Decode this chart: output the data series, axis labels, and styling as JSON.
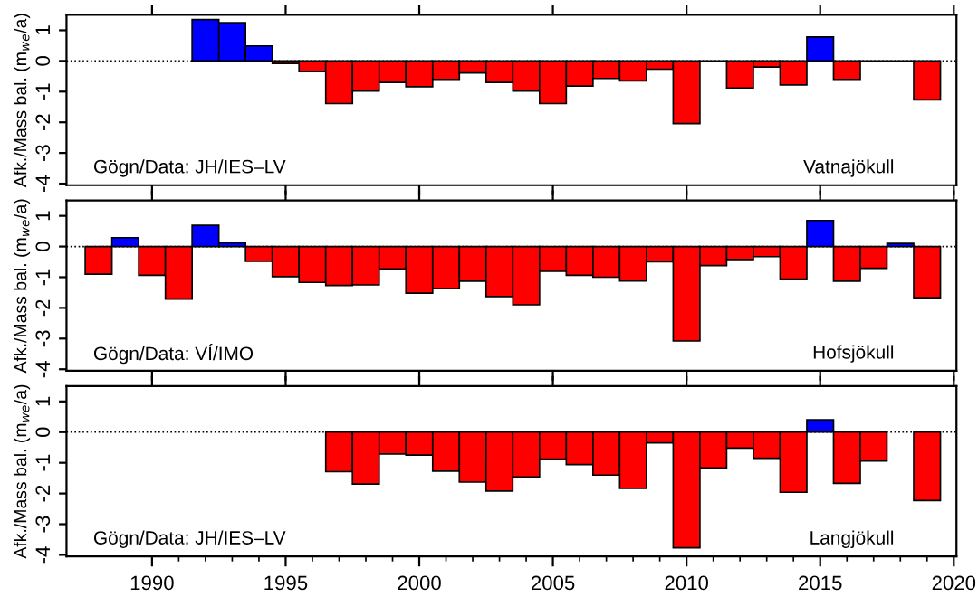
{
  "chart_data": [
    {
      "type": "bar",
      "ylabel": "Afk./Mass bal. (m$_{we}$/a)",
      "annotations": [
        "Gögn/Data: JH/IES–LV",
        "Vatnajökull"
      ],
      "x": [
        1992,
        1993,
        1994,
        1995,
        1996,
        1997,
        1998,
        1999,
        2000,
        2001,
        2002,
        2003,
        2004,
        2005,
        2006,
        2007,
        2008,
        2009,
        2010,
        2011,
        2012,
        2013,
        2014,
        2015,
        2016,
        2017,
        2018,
        2019
      ],
      "values": [
        1.35,
        1.25,
        0.49,
        -0.08,
        -0.35,
        -1.39,
        -0.98,
        -0.7,
        -0.84,
        -0.6,
        -0.39,
        -0.7,
        -0.98,
        -1.39,
        -0.82,
        -0.57,
        -0.65,
        -0.27,
        -2.04,
        -0.02,
        -0.88,
        -0.2,
        -0.78,
        0.78,
        -0.6,
        -0.02,
        -0.02,
        -1.27
      ],
      "colors": [
        "#0000ff",
        "#0000ff",
        "#0000ff",
        "#ff0000",
        "#ff0000",
        "#ff0000",
        "#ff0000",
        "#ff0000",
        "#ff0000",
        "#ff0000",
        "#ff0000",
        "#ff0000",
        "#ff0000",
        "#ff0000",
        "#ff0000",
        "#ff0000",
        "#ff0000",
        "#ff0000",
        "#ff0000",
        "#ff0000",
        "#ff0000",
        "#ff0000",
        "#ff0000",
        "#0000ff",
        "#ff0000",
        "#ff0000",
        "#ff0000",
        "#ff0000"
      ],
      "xlim": [
        1986.8,
        2020.1
      ],
      "xticks": [
        1990,
        1995,
        2000,
        2005,
        2010,
        2015,
        2020
      ],
      "ylim": [
        -4.05,
        1.5
      ],
      "yticks": [
        -4,
        -3,
        -2,
        -1,
        0,
        1
      ],
      "ref_lines": [
        {
          "axis": "y",
          "value": 0,
          "line_style": "dotted",
          "color": "#000000"
        }
      ],
      "tick_labels": "y",
      "grid": false,
      "legend": false
    },
    {
      "type": "bar",
      "ylabel": "Afk./Mass bal. (m$_{we}$/a)",
      "annotations": [
        "Gögn/Data: VÍ/IMO",
        "Hofsjökull"
      ],
      "x": [
        1988,
        1989,
        1990,
        1991,
        1992,
        1993,
        1994,
        1995,
        1996,
        1997,
        1998,
        1999,
        2000,
        2001,
        2002,
        2003,
        2004,
        2005,
        2006,
        2007,
        2008,
        2009,
        2010,
        2011,
        2012,
        2013,
        2014,
        2015,
        2016,
        2017,
        2018,
        2019
      ],
      "values": [
        -0.9,
        0.29,
        -0.94,
        -1.71,
        0.69,
        0.12,
        -0.48,
        -0.98,
        -1.17,
        -1.27,
        -1.25,
        -0.73,
        -1.52,
        -1.37,
        -1.13,
        -1.63,
        -1.9,
        -0.81,
        -0.94,
        -1.0,
        -1.12,
        -0.5,
        -3.08,
        -0.62,
        -0.42,
        -0.33,
        -1.06,
        0.85,
        -1.13,
        -0.71,
        0.1,
        -1.67
      ],
      "colors": [
        "#ff0000",
        "#0000ff",
        "#ff0000",
        "#ff0000",
        "#0000ff",
        "#0000ff",
        "#ff0000",
        "#ff0000",
        "#ff0000",
        "#ff0000",
        "#ff0000",
        "#ff0000",
        "#ff0000",
        "#ff0000",
        "#ff0000",
        "#ff0000",
        "#ff0000",
        "#ff0000",
        "#ff0000",
        "#ff0000",
        "#ff0000",
        "#ff0000",
        "#ff0000",
        "#ff0000",
        "#ff0000",
        "#ff0000",
        "#ff0000",
        "#0000ff",
        "#ff0000",
        "#ff0000",
        "#0000ff",
        "#ff0000"
      ],
      "xlim": [
        1986.8,
        2020.1
      ],
      "xticks": [
        1990,
        1995,
        2000,
        2005,
        2010,
        2015,
        2020
      ],
      "ylim": [
        -4.05,
        1.5
      ],
      "yticks": [
        -4,
        -3,
        -2,
        -1,
        0,
        1
      ],
      "ref_lines": [
        {
          "axis": "y",
          "value": 0,
          "line_style": "dotted",
          "color": "#000000"
        }
      ],
      "tick_labels": "y",
      "grid": false,
      "legend": false
    },
    {
      "type": "bar",
      "ylabel": "Afk./Mass bal. (m$_{we}$/a)",
      "annotations": [
        "Gögn/Data: JH/IES–LV",
        "Langjökull"
      ],
      "x": [
        1997,
        1998,
        1999,
        2000,
        2001,
        2002,
        2003,
        2004,
        2005,
        2006,
        2007,
        2008,
        2009,
        2010,
        2011,
        2012,
        2013,
        2014,
        2015,
        2016,
        2017,
        2018,
        2019
      ],
      "values": [
        -1.29,
        -1.69,
        -0.71,
        -0.75,
        -1.27,
        -1.63,
        -1.92,
        -1.46,
        -0.88,
        -1.06,
        -1.4,
        -1.83,
        -0.35,
        -3.77,
        -1.17,
        -0.52,
        -0.85,
        -1.96,
        0.4,
        -1.67,
        -0.94,
        null,
        -2.23
      ],
      "colors": [
        "#ff0000",
        "#ff0000",
        "#ff0000",
        "#ff0000",
        "#ff0000",
        "#ff0000",
        "#ff0000",
        "#ff0000",
        "#ff0000",
        "#ff0000",
        "#ff0000",
        "#ff0000",
        "#ff0000",
        "#ff0000",
        "#ff0000",
        "#ff0000",
        "#ff0000",
        "#ff0000",
        "#0000ff",
        "#ff0000",
        "#ff0000",
        "#ff0000",
        "#ff0000"
      ],
      "xlim": [
        1986.8,
        2020.1
      ],
      "xticks": [
        1990,
        {
          "value": 1991,
          "label": null
        },
        {
          "value": 1992,
          "label": null
        },
        {
          "value": 1993,
          "label": null
        },
        {
          "value": 1994,
          "label": null
        },
        1995,
        {
          "value": 1996,
          "label": null
        },
        {
          "value": 1997,
          "label": null
        },
        {
          "value": 1998,
          "label": null
        },
        {
          "value": 1999,
          "label": null
        },
        2000,
        {
          "value": 2001,
          "label": null
        },
        {
          "value": 2002,
          "label": null
        },
        {
          "value": 2003,
          "label": null
        },
        {
          "value": 2004,
          "label": null
        },
        2005,
        {
          "value": 2006,
          "label": null
        },
        {
          "value": 2007,
          "label": null
        },
        {
          "value": 2008,
          "label": null
        },
        {
          "value": 2009,
          "label": null
        },
        2010,
        {
          "value": 2011,
          "label": null
        },
        {
          "value": 2012,
          "label": null
        },
        {
          "value": 2013,
          "label": null
        },
        {
          "value": 2014,
          "label": null
        },
        2015,
        {
          "value": 2016,
          "label": null
        },
        {
          "value": 2017,
          "label": null
        },
        {
          "value": 2018,
          "label": null
        },
        {
          "value": 2019,
          "label": null
        },
        2020
      ],
      "ylim": [
        -4.05,
        1.5
      ],
      "yticks": [
        -4,
        -3,
        -2,
        -1,
        0,
        1
      ],
      "ref_lines": [
        {
          "axis": "y",
          "value": 0,
          "line_style": "dotted",
          "color": "#000000"
        }
      ],
      "grid": false,
      "legend": false
    }
  ]
}
